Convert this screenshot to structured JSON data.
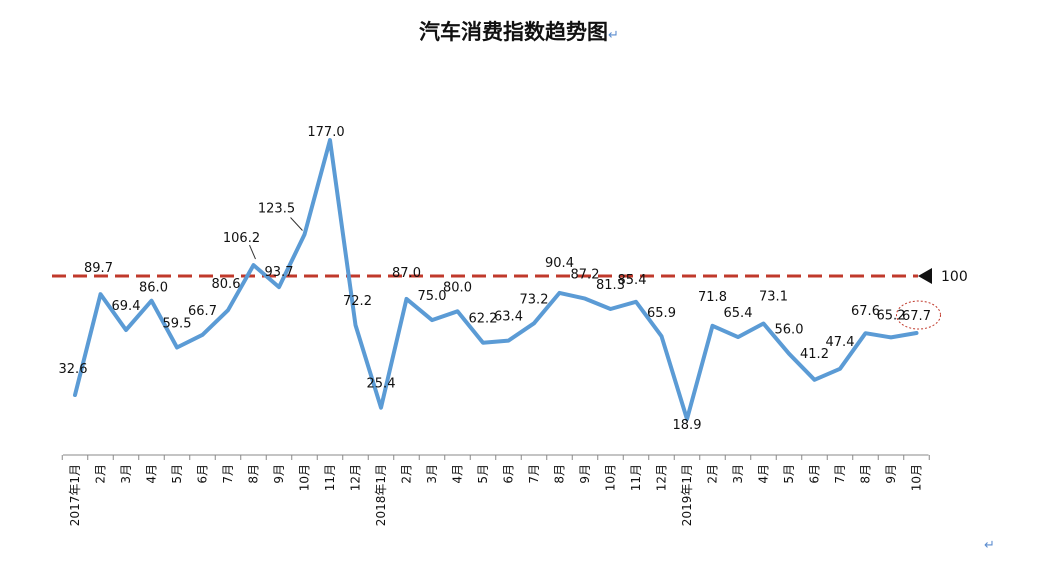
{
  "chart_data": {
    "type": "line",
    "title": "汽车消费指数趋势图",
    "title_mark": "↵",
    "categories": [
      "2017年1月",
      "2月",
      "3月",
      "4月",
      "5月",
      "6月",
      "7月",
      "8月",
      "9月",
      "10月",
      "11月",
      "12月",
      "2018年1月",
      "2月",
      "3月",
      "4月",
      "5月",
      "6月",
      "7月",
      "8月",
      "9月",
      "10月",
      "11月",
      "12月",
      "2019年1月",
      "2月",
      "3月",
      "4月",
      "5月",
      "6月",
      "7月",
      "8月",
      "9月",
      "10月"
    ],
    "series": [
      {
        "values": [
          32.6,
          89.7,
          69.4,
          86.0,
          59.5,
          66.7,
          80.6,
          106.2,
          93.7,
          123.5,
          177.0,
          72.2,
          25.4,
          87.0,
          75.0,
          80.0,
          62.2,
          63.4,
          73.2,
          90.4,
          87.2,
          81.3,
          85.4,
          65.9,
          18.9,
          71.8,
          65.4,
          73.1,
          56.0,
          41.2,
          47.4,
          67.6,
          65.2,
          67.7
        ],
        "labels": [
          "32.6",
          "89.7",
          "69.4",
          "86.0",
          "59.5",
          "66.7",
          "80.6",
          "106.2",
          "93.7",
          "123.5",
          "177.0",
          "72.2",
          "25.4",
          "87.0",
          "75.0",
          "80.0",
          "62.2",
          "63.4",
          "73.2",
          "90.4",
          "87.2",
          "81.3",
          "85.4",
          "65.9",
          "18.9",
          "71.8",
          "65.4",
          "73.1",
          "56.0",
          "41.2",
          "47.4",
          "67.6",
          "65.2",
          "67.7"
        ],
        "color": "#5b9bd5"
      }
    ],
    "reference_line": {
      "value": 100,
      "label": "100",
      "color": "#c0392b",
      "style": "dashed"
    },
    "highlight": {
      "index": 33,
      "style": "dotted-circle",
      "color": "#c0392b"
    },
    "ylim": [
      0,
      190
    ],
    "xlabel": "",
    "ylabel": "",
    "grid": false,
    "legend": "none"
  },
  "page_mark": "↵"
}
